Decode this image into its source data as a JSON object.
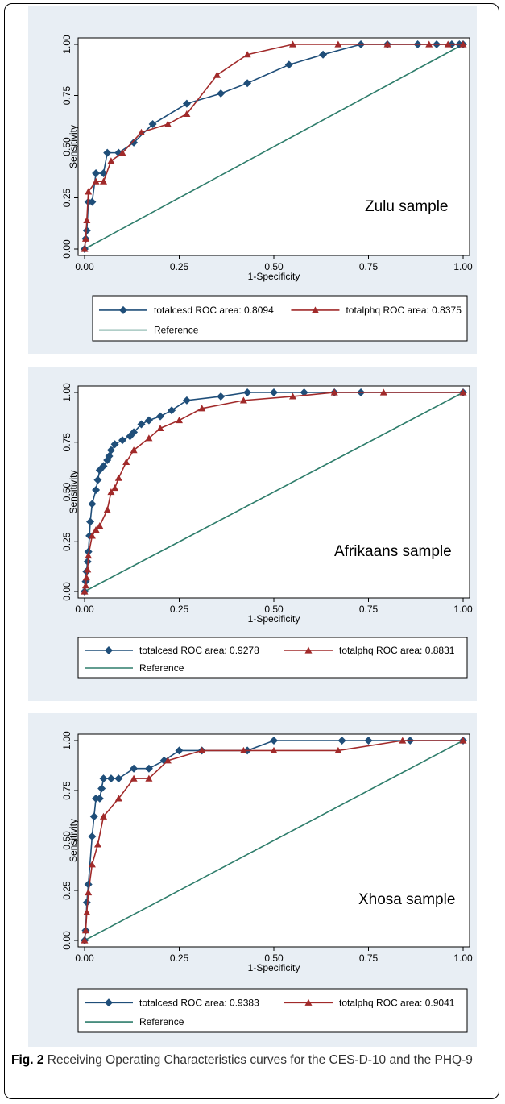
{
  "caption": {
    "label": "Fig. 2",
    "text": "Receiving Operating Characteristics curves for the CES-D-10 and the PHQ-9"
  },
  "colors": {
    "cesd": "#1f4e79",
    "phq": "#a12a2a",
    "reference": "#2e7d6b"
  },
  "chart_data": [
    {
      "type": "line",
      "annotation": "Zulu sample",
      "xlabel": "1-Specificity",
      "ylabel": "Sensitivity",
      "xlim": [
        0,
        1
      ],
      "ylim": [
        0,
        1
      ],
      "xticks": [
        "0.00",
        "0.25",
        "0.50",
        "0.75",
        "1.00"
      ],
      "yticks": [
        "0.00",
        "0.25",
        "0.50",
        "0.75",
        "1.00"
      ],
      "legend": "bottom",
      "series": [
        {
          "name": "totalcesd ROC area: 0.8094",
          "marker": "diamond",
          "x": [
            0,
            0.003,
            0.006,
            0.01,
            0.02,
            0.03,
            0.05,
            0.06,
            0.09,
            0.13,
            0.18,
            0.27,
            0.36,
            0.43,
            0.54,
            0.63,
            0.73,
            0.8,
            0.88,
            0.93,
            0.97,
            0.99,
            1
          ],
          "y": [
            0,
            0.05,
            0.09,
            0.23,
            0.23,
            0.37,
            0.37,
            0.47,
            0.47,
            0.52,
            0.61,
            0.71,
            0.76,
            0.81,
            0.9,
            0.95,
            1,
            1,
            1,
            1,
            1,
            1,
            1
          ]
        },
        {
          "name": "totalphq ROC area: 0.8375",
          "marker": "triangle",
          "x": [
            0,
            0.003,
            0.006,
            0.01,
            0.03,
            0.05,
            0.07,
            0.1,
            0.15,
            0.22,
            0.27,
            0.35,
            0.43,
            0.55,
            0.67,
            0.8,
            0.91,
            0.96,
            1
          ],
          "y": [
            0,
            0.05,
            0.14,
            0.28,
            0.33,
            0.33,
            0.43,
            0.47,
            0.57,
            0.61,
            0.66,
            0.85,
            0.95,
            1,
            1,
            1,
            1,
            1,
            1
          ]
        },
        {
          "name": "Reference",
          "marker": "none",
          "x": [
            0,
            1
          ],
          "y": [
            0,
            1
          ]
        }
      ]
    },
    {
      "type": "line",
      "annotation": "Afrikaans sample",
      "xlabel": "1-Specificity",
      "ylabel": "Sensitivity",
      "xlim": [
        0,
        1
      ],
      "ylim": [
        0,
        1
      ],
      "xticks": [
        "0.00",
        "0.25",
        "0.50",
        "0.75",
        "1.00"
      ],
      "yticks": [
        "0.00",
        "0.25",
        "0.50",
        "0.75",
        "1.00"
      ],
      "legend": "bottom",
      "series": [
        {
          "name": "totalcesd ROC area: 0.9278",
          "marker": "diamond",
          "x": [
            0,
            0.003,
            0.005,
            0.008,
            0.01,
            0.013,
            0.015,
            0.02,
            0.03,
            0.035,
            0.04,
            0.05,
            0.06,
            0.065,
            0.07,
            0.08,
            0.1,
            0.12,
            0.13,
            0.15,
            0.17,
            0.2,
            0.23,
            0.27,
            0.36,
            0.43,
            0.5,
            0.58,
            0.66,
            0.73,
            1
          ],
          "y": [
            0,
            0.05,
            0.1,
            0.15,
            0.2,
            0.28,
            0.35,
            0.44,
            0.51,
            0.56,
            0.61,
            0.63,
            0.66,
            0.68,
            0.71,
            0.74,
            0.76,
            0.78,
            0.8,
            0.84,
            0.86,
            0.88,
            0.91,
            0.96,
            0.98,
            1,
            1,
            1,
            1,
            1,
            1
          ]
        },
        {
          "name": "totalphq ROC area: 0.8831",
          "marker": "triangle",
          "x": [
            0,
            0.003,
            0.005,
            0.008,
            0.01,
            0.02,
            0.03,
            0.04,
            0.06,
            0.07,
            0.08,
            0.09,
            0.11,
            0.13,
            0.17,
            0.2,
            0.25,
            0.31,
            0.42,
            0.55,
            0.66,
            0.79,
            1
          ],
          "y": [
            0,
            0.03,
            0.07,
            0.11,
            0.18,
            0.28,
            0.31,
            0.33,
            0.41,
            0.5,
            0.52,
            0.57,
            0.65,
            0.71,
            0.77,
            0.82,
            0.86,
            0.92,
            0.96,
            0.98,
            1,
            1,
            1
          ]
        },
        {
          "name": "Reference",
          "marker": "none",
          "x": [
            0,
            1
          ],
          "y": [
            0,
            1
          ]
        }
      ]
    },
    {
      "type": "line",
      "annotation": "Xhosa sample",
      "xlabel": "1-Specificity",
      "ylabel": "Sensitivity",
      "xlim": [
        0,
        1
      ],
      "ylim": [
        0,
        1
      ],
      "xticks": [
        "0.00",
        "0.25",
        "0.50",
        "0.75",
        "1.00"
      ],
      "yticks": [
        "0.00",
        "0.25",
        "0.50",
        "0.75",
        "1.00"
      ],
      "legend": "bottom",
      "series": [
        {
          "name": "totalcesd ROC area: 0.9383",
          "marker": "diamond",
          "x": [
            0,
            0.003,
            0.006,
            0.01,
            0.02,
            0.025,
            0.03,
            0.04,
            0.045,
            0.05,
            0.07,
            0.09,
            0.13,
            0.17,
            0.21,
            0.25,
            0.31,
            0.43,
            0.5,
            0.68,
            0.75,
            0.86,
            1
          ],
          "y": [
            0,
            0.05,
            0.19,
            0.28,
            0.52,
            0.62,
            0.71,
            0.71,
            0.76,
            0.81,
            0.81,
            0.81,
            0.86,
            0.86,
            0.9,
            0.95,
            0.95,
            0.95,
            1,
            1,
            1,
            1,
            1
          ]
        },
        {
          "name": "totalphq ROC area: 0.9041",
          "marker": "triangle",
          "x": [
            0,
            0.003,
            0.006,
            0.01,
            0.02,
            0.035,
            0.05,
            0.09,
            0.13,
            0.17,
            0.22,
            0.31,
            0.42,
            0.5,
            0.67,
            0.84,
            1
          ],
          "y": [
            0,
            0.05,
            0.14,
            0.24,
            0.38,
            0.48,
            0.62,
            0.71,
            0.81,
            0.81,
            0.9,
            0.95,
            0.95,
            0.95,
            0.95,
            1,
            1
          ]
        },
        {
          "name": "Reference",
          "marker": "none",
          "x": [
            0,
            1
          ],
          "y": [
            0,
            1
          ]
        }
      ]
    }
  ]
}
